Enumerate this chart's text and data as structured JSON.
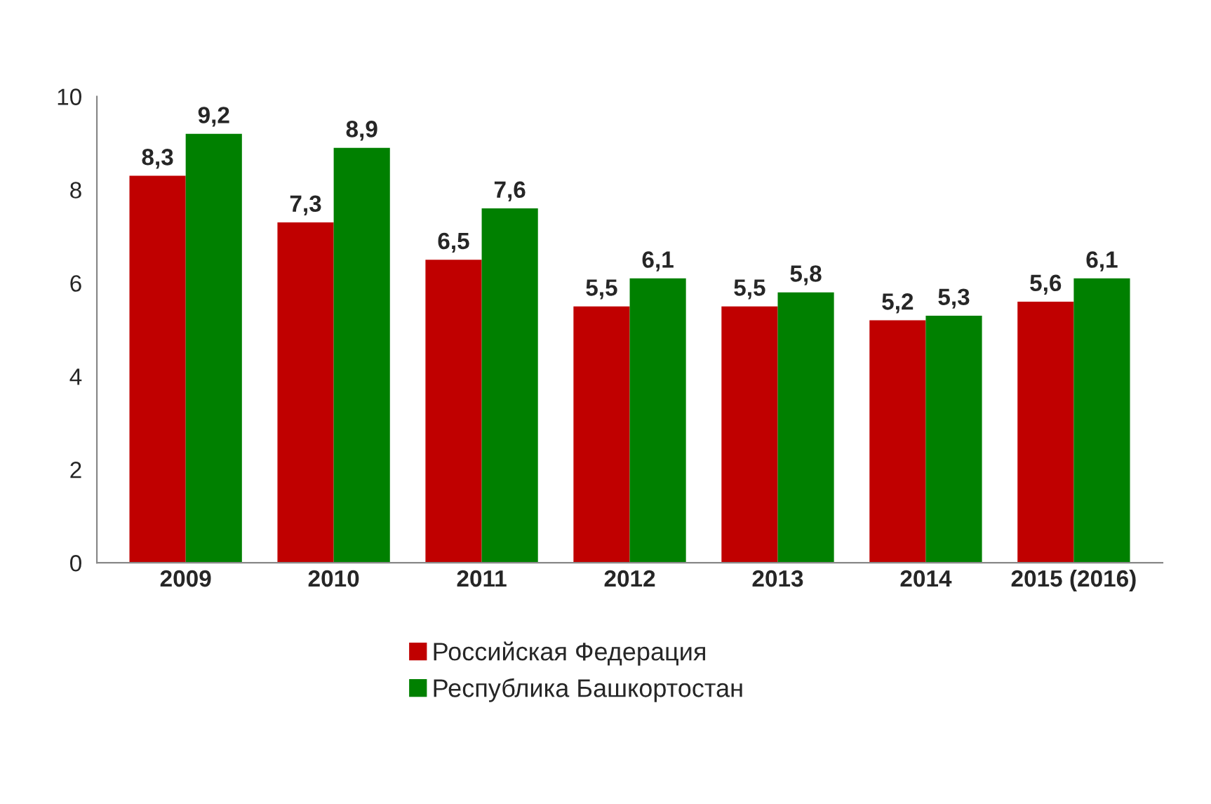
{
  "chart_data": {
    "type": "bar",
    "categories": [
      "2009",
      "2010",
      "2011",
      "2012",
      "2013",
      "2014",
      "2015 (2016)"
    ],
    "series": [
      {
        "name": "Российская Федерация",
        "color": "#c00000",
        "values": [
          8.3,
          7.3,
          6.5,
          5.5,
          5.5,
          5.2,
          5.6
        ],
        "value_labels": [
          "8,3",
          "7,3",
          "6,5",
          "5,5",
          "5,5",
          "5,2",
          "5,6"
        ]
      },
      {
        "name": "Республика Башкортостан",
        "color": "#008000",
        "values": [
          9.2,
          8.9,
          7.6,
          6.1,
          5.8,
          5.3,
          6.1
        ],
        "value_labels": [
          "9,2",
          "8,9",
          "7,6",
          "6,1",
          "5,8",
          "5,3",
          "6,1"
        ]
      }
    ],
    "ylim": [
      0,
      10
    ],
    "yticks": [
      0,
      2,
      4,
      6,
      8,
      10
    ],
    "grid": false,
    "legend": "bottom"
  }
}
